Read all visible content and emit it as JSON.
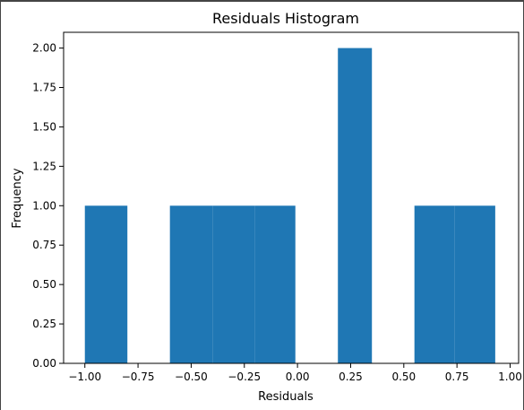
{
  "chart_data": {
    "type": "bar",
    "title": "Residuals Histogram",
    "xlabel": "Residuals",
    "ylabel": "Frequency",
    "xlim": [
      -1.1,
      1.04
    ],
    "ylim": [
      0,
      2.1
    ],
    "xticks": [
      -1.0,
      -0.75,
      -0.5,
      -0.25,
      0.0,
      0.25,
      0.5,
      0.75,
      1.0
    ],
    "xtick_labels": [
      "−1.00",
      "−0.75",
      "−0.50",
      "−0.25",
      "0.00",
      "0.25",
      "0.50",
      "0.75",
      "1.00"
    ],
    "yticks": [
      0.0,
      0.25,
      0.5,
      0.75,
      1.0,
      1.25,
      1.5,
      1.75,
      2.0
    ],
    "ytick_labels": [
      "0.00",
      "0.25",
      "0.50",
      "0.75",
      "1.00",
      "1.25",
      "1.50",
      "1.75",
      "2.00"
    ],
    "bins": [
      {
        "x0": -1.0,
        "x1": -0.8,
        "count": 1
      },
      {
        "x0": -0.8,
        "x1": -0.6,
        "count": 0
      },
      {
        "x0": -0.6,
        "x1": -0.4,
        "count": 1
      },
      {
        "x0": -0.4,
        "x1": -0.2,
        "count": 1
      },
      {
        "x0": -0.2,
        "x1": -0.01,
        "count": 1
      },
      {
        "x0": -0.01,
        "x1": 0.19,
        "count": 0
      },
      {
        "x0": 0.19,
        "x1": 0.35,
        "count": 2
      },
      {
        "x0": 0.35,
        "x1": 0.55,
        "count": 0
      },
      {
        "x0": 0.55,
        "x1": 0.74,
        "count": 1
      },
      {
        "x0": 0.74,
        "x1": 0.93,
        "count": 1
      }
    ],
    "bar_color": "#1f77b4",
    "grid": false
  }
}
